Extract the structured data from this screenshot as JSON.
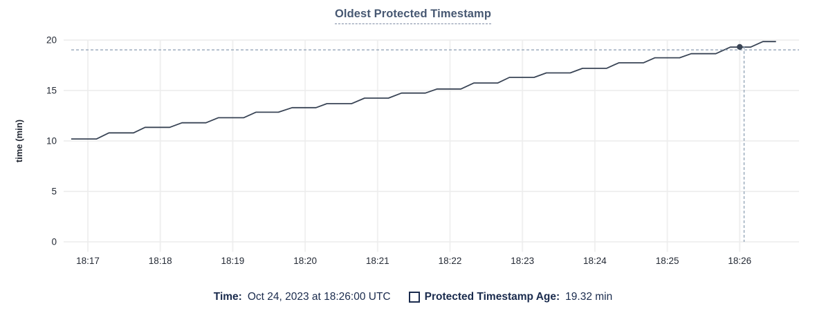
{
  "title": "Oldest Protected Timestamp",
  "legend": {
    "time_label": "Time:",
    "time_value": "Oct 24, 2023 at 18:26:00 UTC",
    "series_label": "Protected Timestamp Age:",
    "series_value": "19.32 min"
  },
  "colors": {
    "title": "#475872",
    "legend_text": "#1a2b4d",
    "line": "#394455",
    "grid_horizontal": "#ececec",
    "grid_vertical": "#f0f0f0",
    "crosshair": "#94a5b8",
    "tick_label": "#242a35",
    "hover_dot": "#394455"
  },
  "chart_data": {
    "type": "line",
    "title": "Oldest Protected Timestamp",
    "xlabel": "",
    "ylabel": "time (min)",
    "ylim": [
      0,
      20
    ],
    "y_ticks": [
      0,
      5,
      10,
      15,
      20
    ],
    "x_ticks": [
      {
        "m": 17,
        "label": "18:17"
      },
      {
        "m": 18,
        "label": "18:18"
      },
      {
        "m": 19,
        "label": "18:19"
      },
      {
        "m": 20,
        "label": "18:20"
      },
      {
        "m": 21,
        "label": "18:21"
      },
      {
        "m": 22,
        "label": "18:22"
      },
      {
        "m": 23,
        "label": "18:23"
      },
      {
        "m": 24,
        "label": "18:24"
      },
      {
        "m": 25,
        "label": "18:25"
      },
      {
        "m": 26,
        "label": "18:26"
      }
    ],
    "x_unit": "minutes after 18:00 UTC",
    "grid": true,
    "legend_position": "bottom-center",
    "series": [
      {
        "name": "Protected Timestamp Age",
        "unit": "min",
        "points": [
          [
            16.77,
            10.2
          ],
          [
            17.12,
            10.2
          ],
          [
            17.29,
            10.8
          ],
          [
            17.63,
            10.8
          ],
          [
            17.79,
            11.35
          ],
          [
            18.13,
            11.35
          ],
          [
            18.3,
            11.8
          ],
          [
            18.63,
            11.8
          ],
          [
            18.8,
            12.3
          ],
          [
            19.15,
            12.3
          ],
          [
            19.32,
            12.85
          ],
          [
            19.63,
            12.85
          ],
          [
            19.82,
            13.3
          ],
          [
            20.15,
            13.3
          ],
          [
            20.3,
            13.7
          ],
          [
            20.64,
            13.7
          ],
          [
            20.82,
            14.25
          ],
          [
            21.15,
            14.25
          ],
          [
            21.33,
            14.75
          ],
          [
            21.66,
            14.75
          ],
          [
            21.82,
            15.15
          ],
          [
            22.15,
            15.15
          ],
          [
            22.33,
            15.75
          ],
          [
            22.66,
            15.75
          ],
          [
            22.82,
            16.3
          ],
          [
            23.16,
            16.3
          ],
          [
            23.33,
            16.75
          ],
          [
            23.66,
            16.75
          ],
          [
            23.83,
            17.2
          ],
          [
            24.16,
            17.2
          ],
          [
            24.33,
            17.75
          ],
          [
            24.67,
            17.75
          ],
          [
            24.83,
            18.25
          ],
          [
            25.17,
            18.25
          ],
          [
            25.33,
            18.65
          ],
          [
            25.67,
            18.65
          ],
          [
            25.87,
            19.3
          ],
          [
            26.15,
            19.3
          ],
          [
            26.32,
            19.85
          ],
          [
            26.5,
            19.85
          ]
        ]
      }
    ],
    "hover": {
      "time_label": "18:26:00",
      "point": [
        26.0,
        19.32
      ],
      "crosshair": [
        26.06,
        19.03
      ]
    }
  }
}
